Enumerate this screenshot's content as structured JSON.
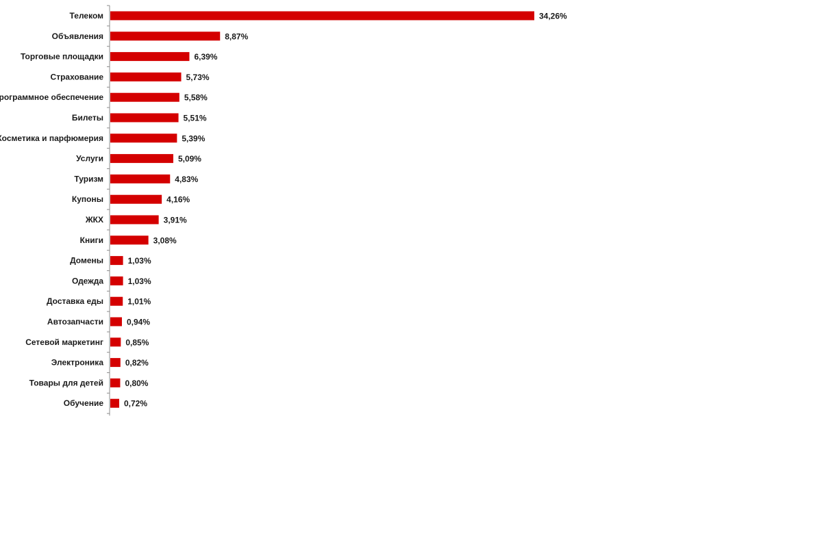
{
  "chart_data": {
    "type": "bar",
    "orientation": "horizontal",
    "categories": [
      "Телеком",
      "Объявления",
      "Торговые площадки",
      "Страхование",
      "Программное обеспечение",
      "Билеты",
      "Косметика и парфюмерия",
      "Услуги",
      "Туризм",
      "Купоны",
      "ЖКХ",
      "Книги",
      "Домены",
      "Одежда",
      "Доставка еды",
      "Автозапчасти",
      "Сетевой маркетинг",
      "Электроника",
      "Товары для детей",
      "Обучение"
    ],
    "values": [
      34.26,
      8.87,
      6.39,
      5.73,
      5.58,
      5.51,
      5.39,
      5.09,
      4.83,
      4.16,
      3.91,
      3.08,
      1.03,
      1.03,
      1.01,
      0.94,
      0.85,
      0.82,
      0.8,
      0.72
    ],
    "value_labels": [
      "34,26%",
      "8,87%",
      "6,39%",
      "5,73%",
      "5,58%",
      "5,51%",
      "5,39%",
      "5,09%",
      "4,83%",
      "4,16%",
      "3,91%",
      "3,08%",
      "1,03%",
      "1,03%",
      "1,01%",
      "0,94%",
      "0,85%",
      "0,82%",
      "0,80%",
      "0,72%"
    ],
    "unit": "%",
    "xlim": [
      0,
      34.26
    ],
    "title": "",
    "xlabel": "",
    "ylabel": "",
    "grid": false,
    "legend": "none",
    "bar_color": "#d40000",
    "axis_color": "#8c8c8c"
  }
}
